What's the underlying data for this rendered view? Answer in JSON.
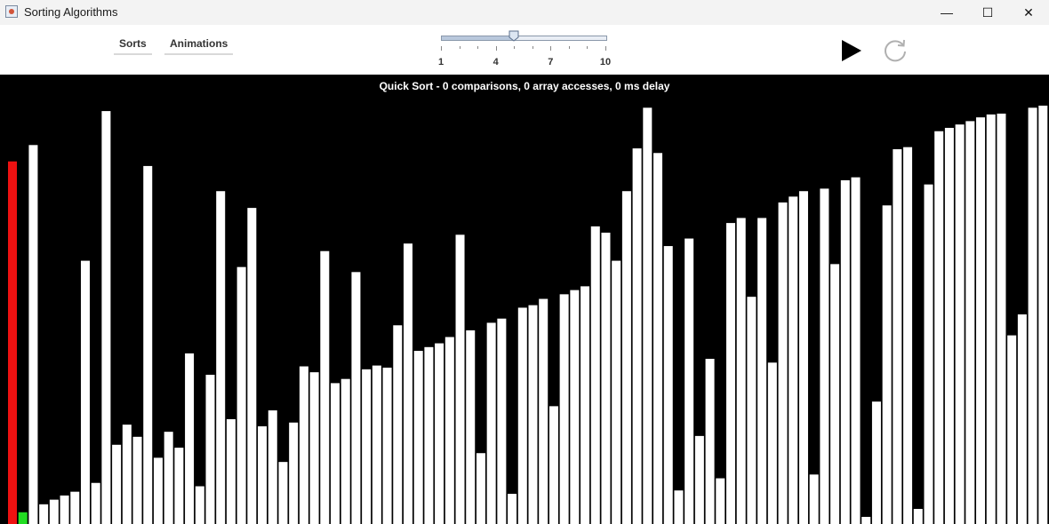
{
  "window": {
    "title": "Sorting Algorithms",
    "minimize_symbol": "—",
    "maximize_symbol": "☐",
    "close_symbol": "✕"
  },
  "menu": {
    "sorts_label": "Sorts",
    "animations_label": "Animations"
  },
  "speed_slider": {
    "min": 1,
    "max": 10,
    "value": 5,
    "tick_labels": [
      "1",
      "4",
      "7",
      "10"
    ]
  },
  "controls": {
    "play_icon": "play-icon",
    "reset_icon": "refresh-icon"
  },
  "status": {
    "text": "Quick Sort - 0 comparisons, 0 array accesses, 0 ms delay"
  },
  "colors": {
    "bar": "#ffffff",
    "active_bar": "#ee1111",
    "compare_bar": "#22dd22",
    "background": "#000000"
  },
  "chart_data": {
    "type": "bar",
    "ylim": [
      0,
      100
    ],
    "active_index": 0,
    "compare_index": 1,
    "values": [
      86.5,
      2.8,
      90.4,
      4.7,
      5.8,
      6.8,
      7.7,
      62.8,
      9.8,
      98.5,
      18.9,
      23.7,
      20.8,
      85.4,
      15.8,
      22.0,
      18.2,
      40.7,
      9.0,
      35.6,
      79.4,
      25.0,
      61.3,
      75.4,
      23.3,
      27.1,
      14.8,
      24.2,
      37.6,
      36.2,
      65.1,
      33.6,
      34.6,
      60.1,
      36.9,
      37.8,
      37.3,
      47.4,
      66.9,
      41.3,
      42.2,
      43.1,
      44.6,
      69.0,
      46.2,
      16.9,
      48.0,
      49.0,
      7.2,
      51.6,
      52.2,
      53.7,
      28.1,
      54.8,
      55.8,
      56.7,
      71.0,
      69.5,
      62.8,
      79.4,
      89.6,
      99.3,
      88.5,
      66.3,
      8.0,
      68.1,
      21.0,
      39.4,
      10.9,
      71.8,
      73.0,
      54.2,
      73.0,
      38.5,
      76.7,
      78.1,
      79.4,
      11.8,
      80.0,
      62.0,
      82.0,
      82.7,
      1.7,
      29.2,
      76.0,
      89.4,
      89.9,
      3.6,
      81.0,
      93.7,
      94.5,
      95.3,
      96.1,
      97.0,
      97.7,
      97.9,
      45.0,
      50.0,
      99.3,
      99.8
    ]
  }
}
